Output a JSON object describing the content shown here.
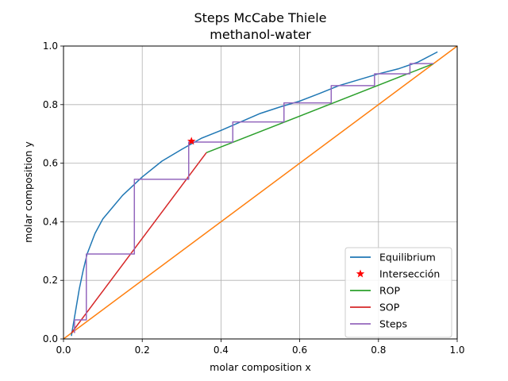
{
  "chart_data": {
    "type": "line",
    "title_line1": "Steps McCabe Thiele",
    "title_line2": "methanol-water",
    "xlabel": "molar composition x",
    "ylabel": "molar composition y",
    "xlim": [
      0.0,
      1.0
    ],
    "ylim": [
      0.0,
      1.0
    ],
    "xticks": [
      "0.0",
      "0.2",
      "0.4",
      "0.6",
      "0.8",
      "1.0"
    ],
    "yticks": [
      "0.0",
      "0.2",
      "0.4",
      "0.6",
      "0.8",
      "1.0"
    ],
    "grid": true,
    "legend_position": "bottom-right",
    "series": [
      {
        "name": "Equilibrium",
        "color": "#1f77b4",
        "kind": "line",
        "x": [
          0.02,
          0.03,
          0.04,
          0.05,
          0.06,
          0.08,
          0.1,
          0.15,
          0.2,
          0.25,
          0.3,
          0.35,
          0.4,
          0.45,
          0.5,
          0.55,
          0.6,
          0.65,
          0.7,
          0.75,
          0.8,
          0.85,
          0.9,
          0.95
        ],
        "y": [
          0.01,
          0.09,
          0.17,
          0.234,
          0.29,
          0.36,
          0.41,
          0.49,
          0.553,
          0.607,
          0.647,
          0.685,
          0.712,
          0.741,
          0.77,
          0.792,
          0.812,
          0.838,
          0.865,
          0.885,
          0.905,
          0.922,
          0.945,
          0.98
        ]
      },
      {
        "name": "Intersección",
        "color": "#ff0000",
        "kind": "marker",
        "x": [
          0.325
        ],
        "y": [
          0.675
        ]
      },
      {
        "name": "ROP",
        "color": "#2ca02c",
        "kind": "line",
        "x": [
          0.363,
          0.94
        ],
        "y": [
          0.636,
          0.94
        ]
      },
      {
        "name": "SOP",
        "color": "#d62728",
        "kind": "line",
        "x": [
          0.02,
          0.363
        ],
        "y": [
          0.02,
          0.636
        ]
      },
      {
        "name": "Steps",
        "color": "#9467bd",
        "kind": "line",
        "x": [
          0.94,
          0.88,
          0.88,
          0.79,
          0.79,
          0.68,
          0.68,
          0.56,
          0.56,
          0.43,
          0.43,
          0.318,
          0.318,
          0.18,
          0.18,
          0.058,
          0.058,
          0.028,
          0.028
        ],
        "y": [
          0.94,
          0.94,
          0.905,
          0.905,
          0.865,
          0.865,
          0.806,
          0.806,
          0.741,
          0.741,
          0.672,
          0.672,
          0.545,
          0.545,
          0.29,
          0.29,
          0.065,
          0.065,
          0.02
        ]
      }
    ],
    "diagonal": {
      "color": "#ff7f0e",
      "x": [
        0.0,
        1.0
      ],
      "y": [
        0.0,
        1.0
      ]
    }
  }
}
